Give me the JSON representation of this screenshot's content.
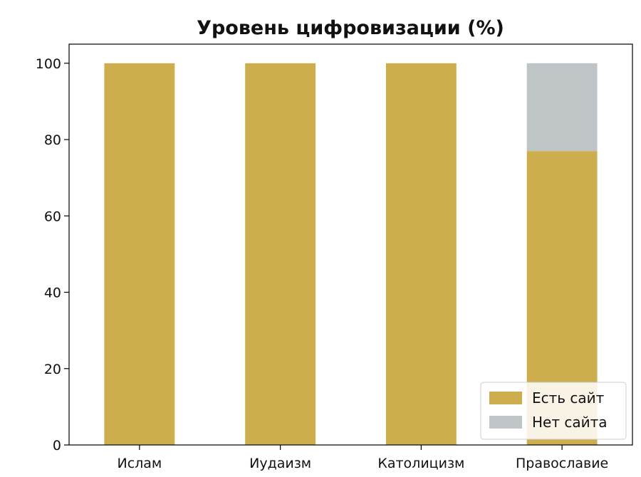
{
  "chart_data": {
    "type": "bar",
    "stacked": true,
    "title": "Уровень цифровизации (%)",
    "xlabel": "",
    "ylabel": "",
    "categories": [
      "Ислам",
      "Иудаизм",
      "Католицизм",
      "Православие"
    ],
    "series": [
      {
        "name": "Есть сайт",
        "values": [
          100,
          100,
          100,
          77
        ],
        "color": "#CDAD4E"
      },
      {
        "name": "Нет сайта",
        "values": [
          0,
          0,
          0,
          23
        ],
        "color": "#BFC4C6"
      }
    ],
    "ylim": [
      0,
      105
    ],
    "yticks": [
      0,
      20,
      40,
      60,
      80,
      100
    ],
    "grid": false,
    "legend_position": "lower-right"
  }
}
